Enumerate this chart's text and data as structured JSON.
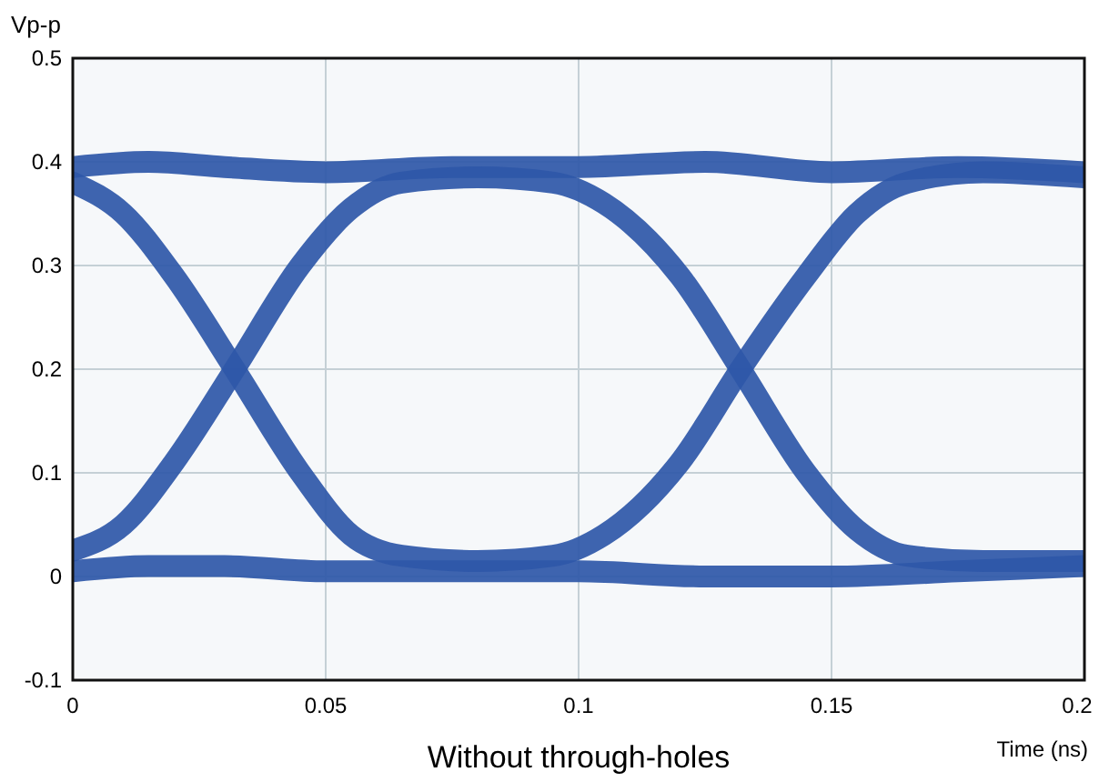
{
  "chart_data": {
    "type": "line",
    "title": "Without through-holes",
    "xlabel": "Time (ns)",
    "ylabel": "Vp-p",
    "xlim": [
      0,
      0.2
    ],
    "ylim": [
      -0.1,
      0.5
    ],
    "xticks": [
      0,
      0.05,
      0.1,
      0.15,
      0.2
    ],
    "yticks": [
      -0.1,
      0,
      0.1,
      0.2,
      0.3,
      0.4,
      0.5
    ],
    "grid": true,
    "marker": "none",
    "line_style": "solid",
    "series": [
      {
        "color": "#2e57a8",
        "x": [
          0,
          0.015,
          0.03,
          0.05,
          0.075,
          0.1,
          0.125,
          0.15,
          0.175,
          0.2
        ],
        "values": [
          0.395,
          0.4,
          0.395,
          0.39,
          0.395,
          0.395,
          0.4,
          0.39,
          0.395,
          0.39
        ]
      },
      {
        "color": "#2e57a8",
        "x": [
          0,
          0.015,
          0.03,
          0.05,
          0.075,
          0.1,
          0.125,
          0.15,
          0.175,
          0.2
        ],
        "values": [
          0.005,
          0.01,
          0.01,
          0.005,
          0.005,
          0.005,
          0.0,
          0.0,
          0.005,
          0.01
        ]
      },
      {
        "color": "#2e57a8",
        "x": [
          0,
          0.01,
          0.02,
          0.032,
          0.045,
          0.055,
          0.065,
          0.08,
          0.095,
          0.105,
          0.12,
          0.132,
          0.145,
          0.155,
          0.165,
          0.18,
          0.2
        ],
        "values": [
          0.38,
          0.35,
          0.29,
          0.2,
          0.1,
          0.04,
          0.02,
          0.015,
          0.02,
          0.04,
          0.11,
          0.2,
          0.29,
          0.35,
          0.38,
          0.39,
          0.385
        ]
      },
      {
        "color": "#2e57a8",
        "x": [
          0,
          0.01,
          0.02,
          0.032,
          0.045,
          0.055,
          0.065,
          0.08,
          0.095,
          0.105,
          0.12,
          0.132,
          0.145,
          0.155,
          0.165,
          0.18,
          0.2
        ],
        "values": [
          0.025,
          0.05,
          0.11,
          0.2,
          0.3,
          0.355,
          0.38,
          0.385,
          0.38,
          0.36,
          0.29,
          0.2,
          0.1,
          0.045,
          0.02,
          0.015,
          0.015
        ]
      }
    ]
  }
}
